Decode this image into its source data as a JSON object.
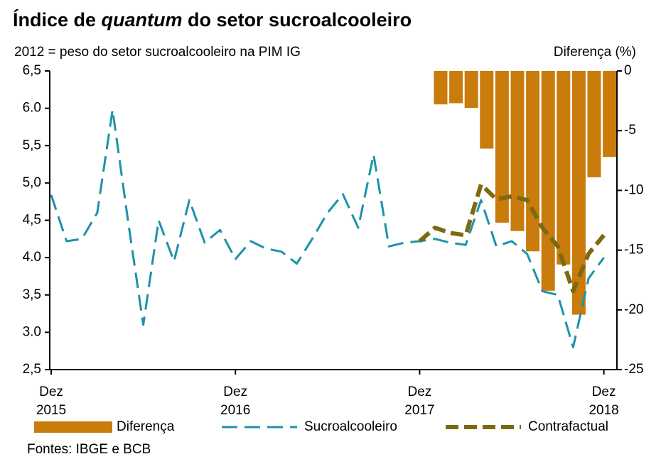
{
  "chart_data": {
    "type": "bar-line",
    "title": [
      "Índice de ",
      "quantum",
      " do setor sucroalcooleiro"
    ],
    "subtitle": "2012 = peso do setor sucroalcooleiro na PIM IG",
    "y2_label": "Diferença (%)",
    "source": "Fontes: IBGE e BCB",
    "categories": [
      "Dez 2015",
      null,
      null,
      null,
      null,
      null,
      null,
      null,
      null,
      null,
      null,
      null,
      "Dez 2016",
      null,
      null,
      null,
      null,
      null,
      null,
      null,
      null,
      null,
      null,
      null,
      "Dez 2017",
      null,
      null,
      null,
      null,
      null,
      null,
      null,
      null,
      null,
      null,
      null,
      "Dez 2018"
    ],
    "ylim": [
      2.5,
      6.5
    ],
    "yticks": [
      {
        "value": 6.5,
        "label": "6,5"
      },
      {
        "value": 6.0,
        "label": "6.0"
      },
      {
        "value": 5.5,
        "label": "5,5"
      },
      {
        "value": 5.0,
        "label": "5,0"
      },
      {
        "value": 4.5,
        "label": "4,5"
      },
      {
        "value": 4.0,
        "label": "4.0"
      },
      {
        "value": 3.5,
        "label": "3,5"
      },
      {
        "value": 3.0,
        "label": "3.0"
      },
      {
        "value": 2.5,
        "label": "2,5"
      }
    ],
    "y2lim": [
      -25,
      0
    ],
    "y2ticks": [
      0,
      -5,
      -10,
      -15,
      -20,
      -25
    ],
    "legend": "bottom",
    "series": [
      {
        "name": "Diferença",
        "type": "bar",
        "axis": "y2",
        "color": "#c97b0c",
        "values": [
          null,
          null,
          null,
          null,
          null,
          null,
          null,
          null,
          null,
          null,
          null,
          null,
          null,
          null,
          null,
          null,
          null,
          null,
          null,
          null,
          null,
          null,
          null,
          null,
          null,
          -2.8,
          -2.7,
          -3.1,
          -6.5,
          -12.7,
          -13.4,
          -15.1,
          -18.4,
          -16.2,
          -20.4,
          -8.9,
          -7.2
        ]
      },
      {
        "name": "Sucroalcooleiro",
        "type": "line",
        "dash": "long",
        "color": "#1b93aa",
        "values": [
          4.84,
          4.22,
          4.25,
          4.6,
          5.98,
          4.5,
          3.1,
          4.5,
          3.95,
          4.77,
          4.2,
          4.37,
          3.98,
          4.22,
          4.12,
          4.08,
          3.92,
          4.25,
          4.6,
          4.85,
          4.4,
          5.38,
          4.15,
          4.2,
          4.22,
          4.25,
          4.2,
          4.17,
          4.77,
          4.15,
          4.22,
          4.05,
          3.55,
          3.5,
          2.8,
          3.72,
          4.0
        ]
      },
      {
        "name": "Contrafactual",
        "type": "line",
        "dash": "thick",
        "color": "#7b6a12",
        "values": [
          null,
          null,
          null,
          null,
          null,
          null,
          null,
          null,
          null,
          null,
          null,
          null,
          null,
          null,
          null,
          null,
          null,
          null,
          null,
          null,
          null,
          null,
          null,
          null,
          4.22,
          4.4,
          4.33,
          4.3,
          4.98,
          4.78,
          4.82,
          4.77,
          4.4,
          4.15,
          3.55,
          4.05,
          4.3
        ]
      }
    ]
  }
}
